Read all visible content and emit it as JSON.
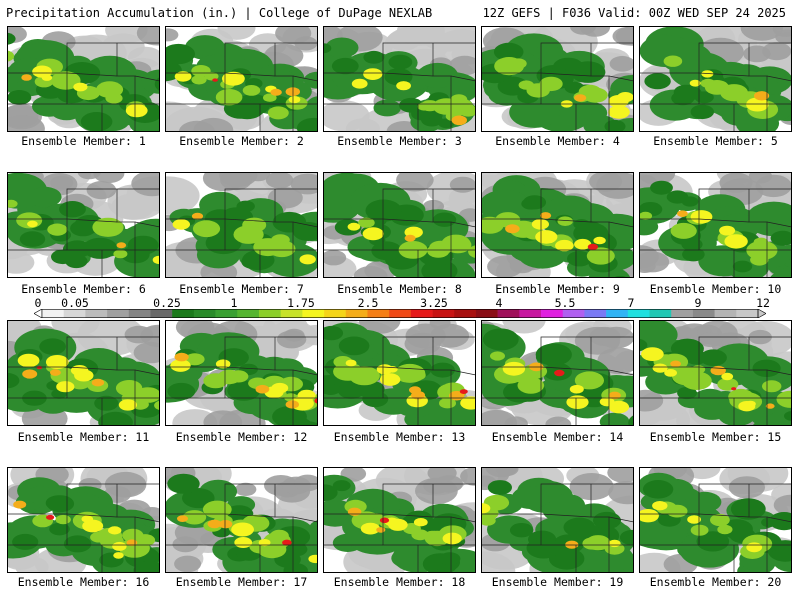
{
  "header": {
    "title": "Precipitation Accumulation (in.) | College of DuPage NEXLAB",
    "run_info": "12Z GEFS | F036 Valid: 00Z WED SEP 24 2025"
  },
  "colorbar": {
    "labels": [
      "0",
      "0.05",
      "0.25",
      "1",
      "1.75",
      "2.5",
      "3.25",
      "4",
      "5.5",
      "7",
      "9",
      "12"
    ],
    "colors": [
      "#f2f2f2",
      "#d7d7d7",
      "#bcbcbc",
      "#a0a0a0",
      "#848484",
      "#696969",
      "#1c7a1c",
      "#2a8b2a",
      "#3aa032",
      "#55b530",
      "#8ccf2a",
      "#c8e22a",
      "#f5f520",
      "#f5d51a",
      "#f5ad1a",
      "#f57f17",
      "#f04a17",
      "#e61a1a",
      "#c81414",
      "#a81010",
      "#8a0d16",
      "#a0105a",
      "#c818a0",
      "#e020e0",
      "#b060f0",
      "#7a7af5",
      "#30b4f5",
      "#20e0e0",
      "#20c8b4",
      "#a0a0a0",
      "#8a8a8a",
      "#b4b4b4",
      "#c8c8c8"
    ]
  },
  "panels": [
    {
      "label": "Ensemble Member: 1",
      "intensity": 0.45
    },
    {
      "label": "Ensemble Member: 2",
      "intensity": 0.55
    },
    {
      "label": "Ensemble Member: 3",
      "intensity": 0.4
    },
    {
      "label": "Ensemble Member: 4",
      "intensity": 0.45
    },
    {
      "label": "Ensemble Member: 5",
      "intensity": 0.4
    },
    {
      "label": "Ensemble Member: 6",
      "intensity": 0.3
    },
    {
      "label": "Ensemble Member: 7",
      "intensity": 0.3
    },
    {
      "label": "Ensemble Member: 8",
      "intensity": 0.4
    },
    {
      "label": "Ensemble Member: 9",
      "intensity": 0.6
    },
    {
      "label": "Ensemble Member: 10",
      "intensity": 0.35
    },
    {
      "label": "Ensemble Member: 11",
      "intensity": 0.7
    },
    {
      "label": "Ensemble Member: 12",
      "intensity": 0.75
    },
    {
      "label": "Ensemble Member: 13",
      "intensity": 0.7
    },
    {
      "label": "Ensemble Member: 14",
      "intensity": 0.6
    },
    {
      "label": "Ensemble Member: 15",
      "intensity": 0.75
    },
    {
      "label": "Ensemble Member: 16",
      "intensity": 0.65
    },
    {
      "label": "Ensemble Member: 17",
      "intensity": 0.8
    },
    {
      "label": "Ensemble Member: 18",
      "intensity": 0.6
    },
    {
      "label": "Ensemble Member: 19",
      "intensity": 0.3
    },
    {
      "label": "Ensemble Member: 20",
      "intensity": 0.45
    }
  ]
}
